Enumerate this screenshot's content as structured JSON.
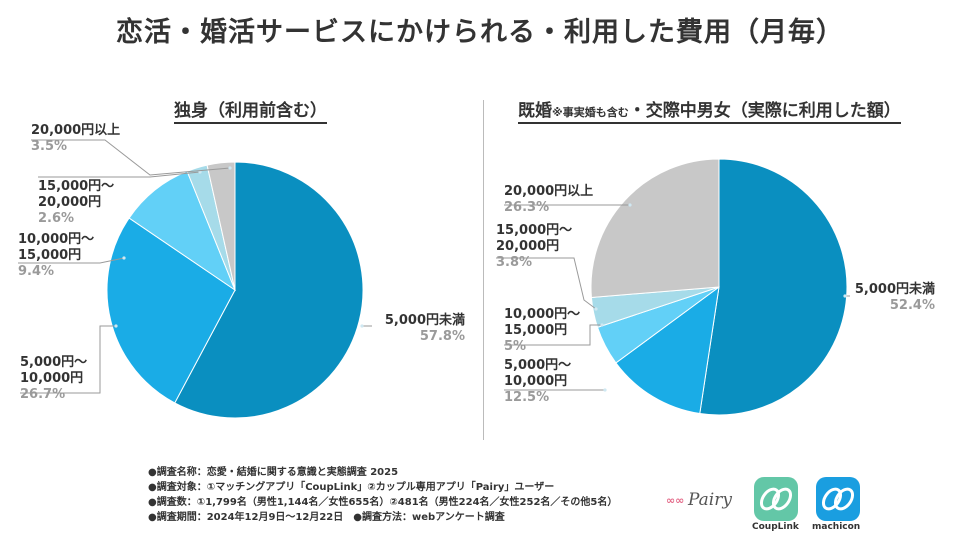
{
  "title": "恋活・婚活サービスにかけられる・利用した費用（月毎）",
  "left_title": "独身（利用前含む）",
  "right_title_a": "既婚",
  "right_title_note": "※事実婚も含む",
  "right_title_b": "・交際中男女（実際に利用した額）",
  "chart_data": [
    {
      "type": "pie",
      "title": "独身（利用前含む）",
      "categories": [
        "5,000円未満",
        "5,000円～10,000円",
        "10,000円～15,000円",
        "15,000円～20,000円",
        "20,000円以上"
      ],
      "values": [
        57.8,
        26.7,
        9.4,
        2.6,
        3.5
      ],
      "labels": [
        {
          "lines": [
            "5,000円未満"
          ],
          "pct": "57.8%"
        },
        {
          "lines": [
            "5,000円～",
            "10,000円"
          ],
          "pct": "26.7%"
        },
        {
          "lines": [
            "10,000円～",
            "15,000円"
          ],
          "pct": "9.4%"
        },
        {
          "lines": [
            "15,000円～",
            "20,000円"
          ],
          "pct": "2.6%"
        },
        {
          "lines": [
            "20,000円以上"
          ],
          "pct": "3.5%"
        }
      ],
      "colors": [
        "#0a8fc0",
        "#1aace6",
        "#62d0f7",
        "#a6dbe9",
        "#c8c8c8"
      ]
    },
    {
      "type": "pie",
      "title": "既婚※事実婚も含む・交際中男女（実際に利用した額）",
      "categories": [
        "5,000円未満",
        "5,000円～10,000円",
        "10,000円～15,000円",
        "15,000円～20,000円",
        "20,000円以上"
      ],
      "values": [
        52.4,
        12.5,
        5,
        3.8,
        26.3
      ],
      "labels": [
        {
          "lines": [
            "5,000円未満"
          ],
          "pct": "52.4%"
        },
        {
          "lines": [
            "5,000円～",
            "10,000円"
          ],
          "pct": "12.5%"
        },
        {
          "lines": [
            "10,000円～",
            "15,000円"
          ],
          "pct": "5%"
        },
        {
          "lines": [
            "15,000円～",
            "20,000円"
          ],
          "pct": "3.8%"
        },
        {
          "lines": [
            "20,000円以上"
          ],
          "pct": "26.3%"
        }
      ],
      "colors": [
        "#0a8fc0",
        "#1aace6",
        "#62d0f7",
        "#a6dbe9",
        "#c8c8c8"
      ]
    }
  ],
  "footer": [
    "●調査名称：恋愛・結婚に関する意識と実態調査 2025",
    "●調査対象：①マッチングアプリ「CoupLink」②カップル専用アプリ「Pairy」ユーザー",
    "●調査数：①1,799名（男性1,144名／女性655名）②481名（男性224名／女性252名／その他5名）",
    "●調査期間：2024年12月9日～12月22日　●調査方法：webアンケート調査"
  ],
  "logos": {
    "pairy": "Pairy",
    "couplink": "CoupLink",
    "machicon": "machicon"
  }
}
